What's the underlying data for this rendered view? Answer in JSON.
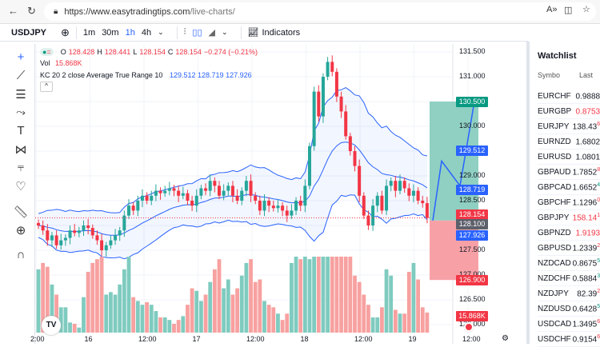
{
  "browser": {
    "url_host": "https://www.easytradingtips.com",
    "url_path": "/live-charts/",
    "icons": [
      "back-icon",
      "reload-icon",
      "lock-icon",
      "read-aloud-icon",
      "split-screen-icon",
      "favorites-icon"
    ]
  },
  "toolbar": {
    "symbol": "USDJPY",
    "intervals": [
      "1m",
      "30m",
      "1h",
      "4h"
    ],
    "active_interval": "1h",
    "indicators_label": "Indicators"
  },
  "legend": {
    "o_label": "O",
    "o": "128.428",
    "h_label": "H",
    "h": "128.441",
    "l_label": "L",
    "l": "128.154",
    "c_label": "C",
    "c": "128.154",
    "change": "−0.274 (−0.21%)",
    "vol_label": "Vol",
    "vol": "15.868K",
    "kc_label": "KC 20 2 close Average True Range 10",
    "kc_upper": "129.512",
    "kc_mid": "128.719",
    "kc_lower": "127.926"
  },
  "price_axis": {
    "ticks": [
      "131.500",
      "131.000",
      "130.000",
      "129.000",
      "128.500",
      "127.500",
      "127.000",
      "126.500",
      "126.000"
    ],
    "labels": {
      "target": "130.500",
      "kc_upper": "129.512",
      "kc_mid": "128.719",
      "last": "128.154",
      "entry": "128.100",
      "kc_lower": "127.926",
      "stop": "126.900",
      "volume": "15.868K"
    }
  },
  "time_axis": [
    "2:00",
    "16",
    "12:00",
    "17",
    "12:00",
    "18",
    "12:00",
    "19",
    "12:00"
  ],
  "colors": {
    "up": "#26a69a",
    "down": "#f23645",
    "band": "#2962ff",
    "target_zone": "#8fd0c2",
    "stop_zone": "#f7a1a7"
  },
  "watchlist": {
    "title": "Watchlist",
    "col_symbol": "Symbo",
    "col_last": "Last",
    "rows": [
      {
        "symbol": "EURCHF",
        "last": "0.9888",
        "sup": "6",
        "red": false,
        "chg": ""
      },
      {
        "symbol": "EURGBP",
        "last": "0.8753",
        "sup": "5",
        "red": true,
        "chg": ""
      },
      {
        "symbol": "EURJPY",
        "last": "138.43",
        "sup": "6",
        "red": false,
        "chg": "−"
      },
      {
        "symbol": "EURNZD",
        "last": "1.6802",
        "sup": "5",
        "red": false,
        "chg": ""
      },
      {
        "symbol": "EURUSD",
        "last": "1.0801",
        "sup": "8",
        "red": false,
        "chg": ""
      },
      {
        "symbol": "GBPAUD",
        "last": "1.7852",
        "sup": "8",
        "red": false,
        "chg": "−"
      },
      {
        "symbol": "GBPCAD",
        "last": "1.6652",
        "sup": "4",
        "red": false,
        "chg": "−"
      },
      {
        "symbol": "GBPCHF",
        "last": "1.1296",
        "sup": "0",
        "red": false,
        "chg": "−"
      },
      {
        "symbol": "GBPJPY",
        "last": "158.14",
        "sup": "1",
        "red": true,
        "chg": "−"
      },
      {
        "symbol": "GBPNZD",
        "last": "1.9193",
        "sup": "0",
        "red": true,
        "chg": ""
      },
      {
        "symbol": "GBPUSD",
        "last": "1.2339",
        "sup": "2",
        "red": false,
        "chg": "−"
      },
      {
        "symbol": "NZDCAD",
        "last": "0.8675",
        "sup": "5",
        "red": false,
        "chg": "−"
      },
      {
        "symbol": "NZDCHF",
        "last": "0.5884",
        "sup": "3",
        "red": false,
        "chg": "−"
      },
      {
        "symbol": "NZDJPY",
        "last": "82.39",
        "sup": "2",
        "red": false,
        "chg": "−"
      },
      {
        "symbol": "NZDUSD",
        "last": "0.6428",
        "sup": "5",
        "red": false,
        "chg": "−"
      },
      {
        "symbol": "USDCAD",
        "last": "1.3495",
        "sup": "6",
        "red": false,
        "chg": "−"
      },
      {
        "symbol": "USDCHF",
        "last": "0.9154",
        "sup": "6",
        "red": false,
        "chg": "−"
      }
    ]
  },
  "chart_data": {
    "type": "candlestick",
    "interval": "1h",
    "close": [
      128.0,
      127.9,
      127.7,
      127.8,
      127.6,
      127.7,
      127.75,
      127.9,
      127.85,
      127.9,
      128.0,
      127.95,
      127.8,
      127.7,
      127.5,
      127.6,
      127.7,
      127.8,
      127.9,
      128.2,
      128.4,
      128.3,
      128.5,
      128.6,
      128.5,
      128.6,
      128.7,
      128.65,
      128.7,
      128.75,
      128.7,
      128.6,
      128.65,
      128.5,
      128.4,
      128.6,
      128.75,
      128.7,
      128.9,
      128.8,
      128.6,
      128.7,
      128.8,
      128.6,
      128.5,
      128.7,
      128.9,
      128.6,
      128.5,
      128.3,
      128.5,
      128.4,
      128.35,
      128.4,
      128.3,
      128.2,
      128.3,
      128.5,
      128.4,
      128.8,
      129.6,
      130.7,
      130.2,
      131.0,
      131.3,
      131.1,
      130.6,
      130.3,
      129.8,
      129.5,
      129.2,
      128.6,
      128.2,
      128.0,
      128.4,
      128.6,
      128.3,
      128.8,
      128.9,
      128.7,
      128.9,
      128.75,
      128.6,
      128.7,
      128.5,
      128.45,
      128.154
    ],
    "volume_k": [
      50,
      55,
      52,
      38,
      30,
      20,
      20,
      8,
      7,
      4,
      28,
      48,
      55,
      58,
      60,
      30,
      32,
      30,
      38,
      50,
      60,
      28,
      25,
      22,
      24,
      22,
      17,
      12,
      12,
      10,
      7,
      10,
      13,
      22,
      35,
      33,
      25,
      30,
      40,
      50,
      58,
      35,
      42,
      30,
      35,
      45,
      55,
      58,
      40,
      42,
      25,
      22,
      20,
      15,
      10,
      15,
      55,
      60,
      58,
      60,
      58,
      60,
      60,
      60,
      60,
      60,
      60,
      60,
      60,
      60,
      45,
      40,
      30,
      22,
      12,
      12,
      20,
      50,
      45,
      18,
      15,
      15,
      48,
      55,
      42,
      20,
      15.868
    ],
    "ylim": [
      126.0,
      131.5
    ],
    "keltner": {
      "length": 20,
      "mult": 2,
      "atr_length": 10
    },
    "position": {
      "type": "long",
      "entry": 128.1,
      "target": 130.5,
      "stop": 126.9
    },
    "projection": [
      128.1,
      129.3,
      128.8,
      130.5
    ]
  }
}
